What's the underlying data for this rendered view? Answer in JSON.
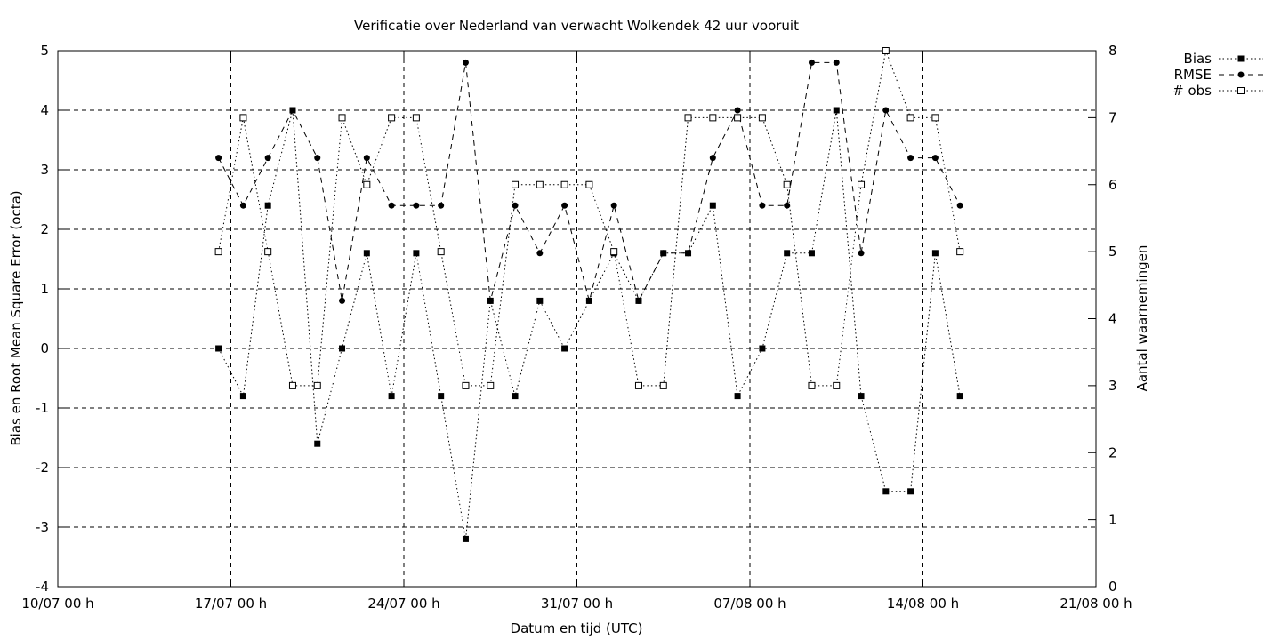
{
  "chart_data": {
    "type": "line",
    "title": "Verificatie over Nederland van verwacht Wolkendek 42 uur vooruit",
    "xlabel": "Datum en tijd (UTC)",
    "ylabel": "Bias en Root Mean Square Error (octa)",
    "y2label": "Aantal waarnemingen",
    "xlim": [
      "2007-07-10T00:00",
      "2007-08-21T00:00"
    ],
    "x_ticks": [
      {
        "value": "2007-07-10T00:00",
        "label": "10/07 00 h"
      },
      {
        "value": "2007-07-17T00:00",
        "label": "17/07 00 h"
      },
      {
        "value": "2007-07-24T00:00",
        "label": "24/07 00 h"
      },
      {
        "value": "2007-07-31T00:00",
        "label": "31/07 00 h"
      },
      {
        "value": "2007-08-07T00:00",
        "label": "07/08 00 h"
      },
      {
        "value": "2007-08-14T00:00",
        "label": "14/08 00 h"
      },
      {
        "value": "2007-08-21T00:00",
        "label": "21/08 00 h"
      }
    ],
    "ylim": [
      -4,
      5
    ],
    "y_ticks": [
      "-4",
      "-3",
      "-2",
      "-1",
      "0",
      "1",
      "2",
      "3",
      "4",
      "5"
    ],
    "y2lim": [
      0,
      8
    ],
    "y2_ticks": [
      "0",
      "1",
      "2",
      "3",
      "4",
      "5",
      "6",
      "7",
      "8"
    ],
    "grid": true,
    "legend_position": "outside-top-right",
    "x": [
      "2007-07-16T12:00",
      "2007-07-17T12:00",
      "2007-07-18T12:00",
      "2007-07-19T12:00",
      "2007-07-20T12:00",
      "2007-07-21T12:00",
      "2007-07-22T12:00",
      "2007-07-23T12:00",
      "2007-07-24T12:00",
      "2007-07-25T12:00",
      "2007-07-26T12:00",
      "2007-07-27T12:00",
      "2007-07-28T12:00",
      "2007-07-29T12:00",
      "2007-07-30T12:00",
      "2007-07-31T12:00",
      "2007-08-01T12:00",
      "2007-08-02T12:00",
      "2007-08-03T12:00",
      "2007-08-04T12:00",
      "2007-08-05T12:00",
      "2007-08-06T12:00",
      "2007-08-07T12:00",
      "2007-08-08T12:00",
      "2007-08-09T12:00",
      "2007-08-10T12:00",
      "2007-08-11T12:00",
      "2007-08-12T12:00",
      "2007-08-13T12:00",
      "2007-08-14T12:00",
      "2007-08-15T12:00"
    ],
    "series": [
      {
        "name": "Bias",
        "axis": "y1",
        "line_style": "dotted",
        "marker": "filled-square",
        "values": [
          0,
          -0.8,
          2.4,
          4,
          -1.6,
          0,
          1.6,
          -0.8,
          1.6,
          -0.8,
          -3.2,
          0.8,
          -0.8,
          0.8,
          0,
          0.8,
          1.6,
          0.8,
          1.6,
          1.6,
          2.4,
          -0.8,
          0,
          1.6,
          1.6,
          4,
          -0.8,
          -2.4,
          -2.4,
          1.6,
          -0.8
        ]
      },
      {
        "name": "RMSE",
        "axis": "y1",
        "line_style": "dashed",
        "marker": "filled-circle",
        "values": [
          3.2,
          2.4,
          3.2,
          4,
          3.2,
          0.8,
          3.2,
          2.4,
          2.4,
          2.4,
          4.8,
          0.8,
          2.4,
          1.6,
          2.4,
          0.8,
          2.4,
          0.8,
          1.6,
          1.6,
          3.2,
          4,
          2.4,
          2.4,
          4.8,
          4.8,
          1.6,
          4,
          3.2,
          3.2,
          2.4
        ]
      },
      {
        "name": "# obs",
        "axis": "y2",
        "line_style": "dotted",
        "marker": "open-square",
        "values": [
          5,
          7,
          5,
          3,
          3,
          7,
          6,
          7,
          7,
          5,
          3,
          3,
          6,
          6,
          6,
          6,
          5,
          3,
          3,
          7,
          7,
          7,
          7,
          6,
          3,
          3,
          6,
          8,
          7,
          7,
          5
        ]
      }
    ]
  }
}
